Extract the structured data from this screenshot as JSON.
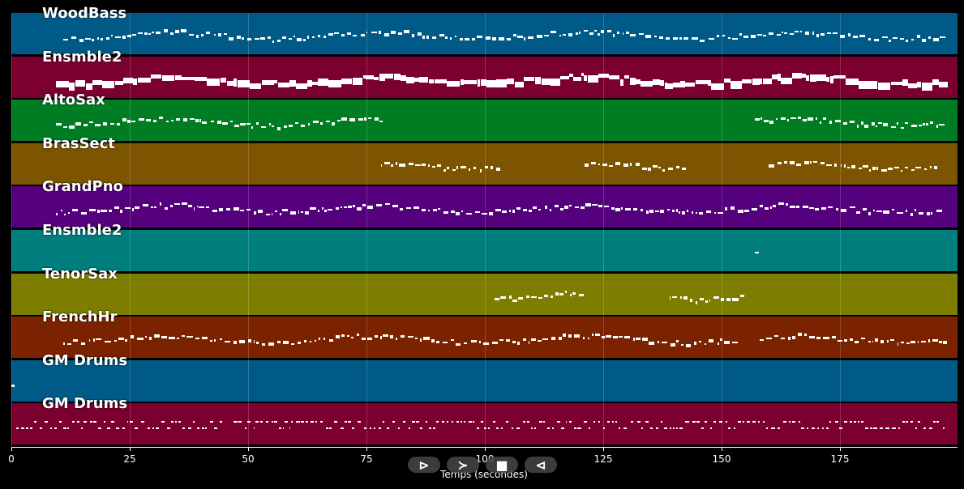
{
  "tracks": [
    {
      "name": "WoodBass",
      "color": "#005a87"
    },
    {
      "name": "Ensmble2",
      "color": "#7b0030"
    },
    {
      "name": "AltoSax",
      "color": "#007d23"
    },
    {
      "name": "BrasSect",
      "color": "#7d5500"
    },
    {
      "name": "GrandPno",
      "color": "#55007d"
    },
    {
      "name": "Ensmble2",
      "color": "#007d7d"
    },
    {
      "name": "TenorSax",
      "color": "#7d7d00"
    },
    {
      "name": "FrenchHr",
      "color": "#7b2300"
    },
    {
      "name": "GM Drums",
      "color": "#005a87"
    },
    {
      "name": "GM Drums",
      "color": "#7b0030"
    }
  ],
  "axis": {
    "xlabel": "Temps (secondes)",
    "ticks": [
      "0",
      "25",
      "50",
      "75",
      "100",
      "125",
      "150",
      "175"
    ]
  },
  "controls": [
    {
      "name": "play-button",
      "icon": "play-outline-icon",
      "glyph": "⊳"
    },
    {
      "name": "forward-button",
      "icon": "chevron-right-icon",
      "glyph": "≻"
    },
    {
      "name": "stop-button",
      "icon": "stop-icon",
      "glyph": "■"
    },
    {
      "name": "back-button",
      "icon": "play-left-icon",
      "glyph": "⊲"
    }
  ]
}
